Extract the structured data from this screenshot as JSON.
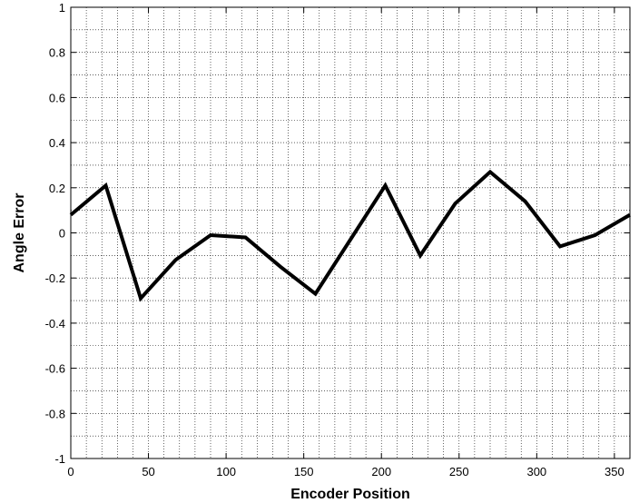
{
  "chart_data": {
    "type": "line",
    "title": "",
    "xlabel": "Encoder Position",
    "ylabel": "Angle Error",
    "xlim": [
      0,
      360
    ],
    "ylim": [
      -1,
      1
    ],
    "x_major_ticks": [
      0,
      50,
      100,
      150,
      200,
      250,
      300,
      350
    ],
    "y_major_ticks": [
      -1,
      -0.8,
      -0.6,
      -0.4,
      -0.2,
      0,
      0.2,
      0.4,
      0.6,
      0.8,
      1
    ],
    "x_tick_labels": [
      "0",
      "50",
      "100",
      "150",
      "200",
      "250",
      "300",
      "350"
    ],
    "y_tick_labels": [
      "-1",
      "-0.8",
      "-0.6",
      "-0.4",
      "-0.2",
      "0",
      "0.2",
      "0.4",
      "0.6",
      "0.8",
      "1"
    ],
    "x_minor_step": 10,
    "y_minor_step": 0.1,
    "grid": "on (dotted, major and minor)",
    "line_color": "#000000",
    "series": [
      {
        "x": [
          0,
          22.5,
          45,
          67.5,
          90,
          112.5,
          135,
          157.5,
          180,
          202.5,
          225,
          247.5,
          270,
          292.5,
          315,
          337.5,
          360
        ],
        "values": [
          0.08,
          0.21,
          -0.29,
          -0.12,
          -0.01,
          -0.02,
          -0.15,
          -0.27,
          -0.03,
          0.21,
          -0.1,
          0.13,
          0.27,
          0.14,
          -0.06,
          -0.01,
          0.08
        ]
      }
    ]
  }
}
